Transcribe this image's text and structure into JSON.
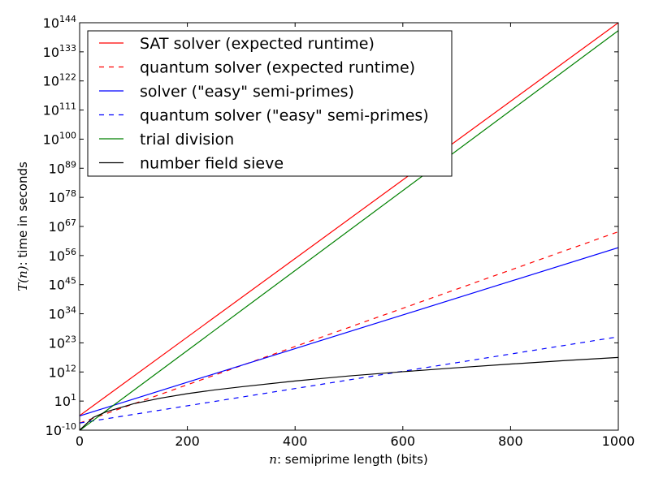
{
  "chart_data": {
    "type": "line",
    "title": "",
    "xlabel": {
      "var": "n",
      "text": ": semiprime length (bits)"
    },
    "ylabel": {
      "var": "T(n)",
      "text": ": time in seconds"
    },
    "xlim": [
      0,
      1000
    ],
    "ylim_exponent": [
      -10,
      144
    ],
    "yscale": "log10",
    "x_ticks": [
      "0",
      "200",
      "400",
      "600",
      "800",
      "1000"
    ],
    "y_ticks": [
      {
        "base": "10",
        "exp": "-10",
        "value": -10
      },
      {
        "base": "10",
        "exp": "1",
        "value": 1
      },
      {
        "base": "10",
        "exp": "12",
        "value": 12
      },
      {
        "base": "10",
        "exp": "23",
        "value": 23
      },
      {
        "base": "10",
        "exp": "34",
        "value": 34
      },
      {
        "base": "10",
        "exp": "45",
        "value": 45
      },
      {
        "base": "10",
        "exp": "56",
        "value": 56
      },
      {
        "base": "10",
        "exp": "67",
        "value": 67
      },
      {
        "base": "10",
        "exp": "78",
        "value": 78
      },
      {
        "base": "10",
        "exp": "89",
        "value": 89
      },
      {
        "base": "10",
        "exp": "100",
        "value": 100
      },
      {
        "base": "10",
        "exp": "111",
        "value": 111
      },
      {
        "base": "10",
        "exp": "122",
        "value": 122
      },
      {
        "base": "10",
        "exp": "133",
        "value": 133
      },
      {
        "base": "10",
        "exp": "144",
        "value": 144
      }
    ],
    "grid": false,
    "legend_position": "top-left",
    "series": [
      {
        "name": "SAT solver (expected runtime)",
        "color": "#ff0000",
        "style": "solid",
        "x": [
          0,
          1000
        ],
        "log10_y": [
          -4.5,
          144
        ]
      },
      {
        "name": "quantum solver (expected runtime)",
        "color": "#ff0000",
        "style": "dashed",
        "x": [
          0,
          1000
        ],
        "log10_y": [
          -7.3,
          65
        ]
      },
      {
        "name": "solver (\"easy\" semi-primes)",
        "color": "#0000ff",
        "style": "solid",
        "x": [
          0,
          1000
        ],
        "log10_y": [
          -4.6,
          59
        ]
      },
      {
        "name": "quantum solver (\"easy\" semi-primes)",
        "color": "#0000ff",
        "style": "dashed",
        "x": [
          0,
          1000
        ],
        "log10_y": [
          -7.3,
          25.3
        ]
      },
      {
        "name": "trial division",
        "color": "#008000",
        "style": "solid",
        "x": [
          0,
          1000
        ],
        "log10_y": [
          -10.1,
          141
        ]
      },
      {
        "name": "number field sieve",
        "color": "#000000",
        "style": "solid",
        "x": [
          0,
          25,
          50,
          100,
          150,
          200,
          250,
          300,
          400,
          500,
          600,
          700,
          800,
          900,
          1000
        ],
        "log10_y": [
          -10,
          -5.2,
          -3.0,
          0.0,
          2.1,
          3.8,
          5.2,
          6.4,
          8.6,
          10.5,
          12.1,
          13.6,
          15.0,
          16.3,
          17.5
        ]
      }
    ]
  }
}
